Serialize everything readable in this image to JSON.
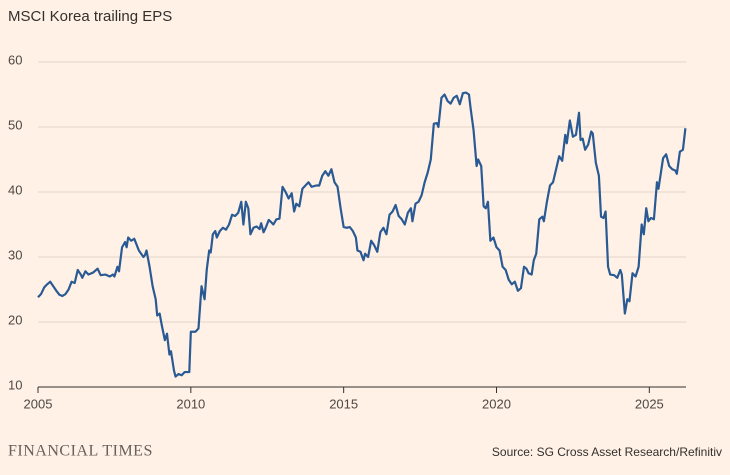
{
  "chart_data": {
    "type": "line",
    "title": "MSCI Korea trailing EPS",
    "source": "Source: SG Cross Asset Research/Refinitiv",
    "brand": "FINANCIAL TIMES",
    "xlim": [
      2005,
      2026.2
    ],
    "xticks": [
      2005,
      2010,
      2015,
      2020,
      2025
    ],
    "ylim": [
      10,
      60
    ],
    "yticks": [
      10,
      20,
      30,
      40,
      50,
      60
    ],
    "grid": true,
    "x": [
      2005.0,
      2005.1,
      2005.2,
      2005.3,
      2005.4,
      2005.5,
      2005.6,
      2005.7,
      2005.8,
      2005.9,
      2006.0,
      2006.1,
      2006.2,
      2006.3,
      2006.4,
      2006.45,
      2006.55,
      2006.65,
      2006.8,
      2006.95,
      2007.05,
      2007.2,
      2007.35,
      2007.45,
      2007.5,
      2007.6,
      2007.65,
      2007.75,
      2007.85,
      2007.9,
      2007.95,
      2008.05,
      2008.15,
      2008.3,
      2008.45,
      2008.5,
      2008.55,
      2008.65,
      2008.75,
      2008.85,
      2008.9,
      2008.98,
      2009.05,
      2009.15,
      2009.22,
      2009.3,
      2009.35,
      2009.45,
      2009.5,
      2009.6,
      2009.7,
      2009.8,
      2009.95,
      2010.0,
      2010.15,
      2010.25,
      2010.35,
      2010.45,
      2010.52,
      2010.6,
      2010.65,
      2010.72,
      2010.8,
      2010.85,
      2010.95,
      2011.05,
      2011.15,
      2011.25,
      2011.35,
      2011.45,
      2011.55,
      2011.65,
      2011.72,
      2011.8,
      2011.88,
      2011.95,
      2012.05,
      2012.15,
      2012.25,
      2012.3,
      2012.38,
      2012.45,
      2012.55,
      2012.62,
      2012.7,
      2012.8,
      2012.9,
      2013.0,
      2013.1,
      2013.2,
      2013.3,
      2013.38,
      2013.45,
      2013.55,
      2013.65,
      2013.75,
      2013.85,
      2013.95,
      2014.1,
      2014.2,
      2014.3,
      2014.4,
      2014.5,
      2014.6,
      2014.7,
      2014.8,
      2014.9,
      2015.0,
      2015.1,
      2015.2,
      2015.3,
      2015.4,
      2015.45,
      2015.55,
      2015.65,
      2015.7,
      2015.8,
      2015.9,
      2016.0,
      2016.1,
      2016.2,
      2016.3,
      2016.4,
      2016.5,
      2016.6,
      2016.7,
      2016.8,
      2016.9,
      2017.0,
      2017.1,
      2017.2,
      2017.25,
      2017.35,
      2017.45,
      2017.55,
      2017.65,
      2017.75,
      2017.85,
      2017.95,
      2018.05,
      2018.1,
      2018.2,
      2018.3,
      2018.4,
      2018.5,
      2018.6,
      2018.7,
      2018.8,
      2018.9,
      2019.0,
      2019.1,
      2019.15,
      2019.25,
      2019.35,
      2019.4,
      2019.5,
      2019.58,
      2019.65,
      2019.72,
      2019.8,
      2019.9,
      2020.0,
      2020.1,
      2020.2,
      2020.3,
      2020.4,
      2020.5,
      2020.6,
      2020.7,
      2020.8,
      2020.9,
      2020.98,
      2021.05,
      2021.15,
      2021.22,
      2021.3,
      2021.4,
      2021.5,
      2021.55,
      2021.65,
      2021.75,
      2021.85,
      2021.95,
      2022.05,
      2022.15,
      2022.25,
      2022.3,
      2022.4,
      2022.5,
      2022.6,
      2022.7,
      2022.75,
      2022.82,
      2022.9,
      2023.0,
      2023.1,
      2023.15,
      2023.25,
      2023.35,
      2023.42,
      2023.5,
      2023.57,
      2023.65,
      2023.72,
      2023.85,
      2023.95,
      2024.05,
      2024.1,
      2024.2,
      2024.28,
      2024.35,
      2024.45,
      2024.55,
      2024.65,
      2024.75,
      2024.82,
      2024.9,
      2024.97,
      2025.05,
      2025.15,
      2025.25,
      2025.3,
      2025.45,
      2025.55,
      2025.65,
      2025.75,
      2025.85,
      2025.9,
      2026.0,
      2026.1,
      2026.18
    ],
    "series": [
      {
        "color": "#2a5a94",
        "values": [
          23.8,
          24.3,
          25.3,
          25.8,
          26.2,
          25.5,
          24.8,
          24.2,
          24.0,
          24.3,
          25.0,
          26.2,
          26.0,
          28.0,
          27.3,
          26.8,
          27.8,
          27.3,
          27.6,
          28.2,
          27.2,
          27.3,
          27.0,
          27.3,
          27.0,
          28.5,
          27.8,
          31.5,
          32.3,
          31.5,
          33.0,
          32.5,
          32.8,
          31.0,
          30.0,
          30.3,
          31.0,
          28.5,
          25.5,
          23.5,
          21.0,
          21.3,
          19.5,
          17.2,
          18.2,
          15.0,
          15.5,
          12.5,
          11.6,
          12.0,
          11.8,
          12.3,
          12.3,
          18.5,
          18.5,
          19.0,
          25.5,
          23.5,
          28.0,
          31.0,
          30.7,
          33.5,
          34.0,
          33.0,
          34.0,
          34.5,
          34.2,
          35.0,
          36.5,
          36.3,
          36.8,
          38.5,
          35.0,
          38.5,
          37.5,
          33.5,
          34.5,
          34.7,
          34.3,
          35.2,
          33.8,
          34.5,
          35.7,
          35.4,
          35.0,
          35.8,
          35.9,
          40.8,
          40.0,
          39.0,
          39.8,
          37.0,
          38.2,
          37.8,
          40.5,
          41.0,
          41.5,
          40.8,
          41.0,
          41.0,
          42.5,
          43.2,
          42.5,
          43.5,
          41.5,
          40.8,
          37.5,
          34.6,
          34.5,
          34.6,
          34.0,
          33.0,
          31.0,
          30.8,
          29.5,
          30.5,
          30.0,
          32.5,
          31.8,
          30.8,
          33.8,
          34.5,
          33.5,
          36.5,
          37.0,
          38.0,
          36.3,
          35.8,
          35.0,
          36.8,
          37.5,
          35.5,
          38.2,
          38.5,
          39.5,
          41.5,
          43.0,
          45.0,
          50.5,
          50.6,
          50.0,
          54.5,
          55.0,
          54.0,
          53.6,
          54.5,
          54.8,
          53.5,
          55.2,
          55.3,
          55.0,
          53.0,
          49.5,
          44.0,
          45.0,
          44.0,
          37.8,
          37.5,
          38.5,
          32.5,
          33.0,
          31.5,
          31.0,
          28.5,
          28.0,
          26.5,
          25.8,
          26.2,
          24.8,
          25.2,
          28.5,
          28.2,
          27.5,
          27.3,
          29.5,
          30.5,
          35.8,
          36.2,
          35.5,
          38.5,
          41.0,
          41.5,
          43.5,
          45.5,
          44.8,
          48.8,
          47.5,
          51.0,
          48.5,
          48.8,
          52.2,
          48.0,
          48.2,
          46.5,
          47.3,
          49.3,
          49.0,
          44.5,
          42.5,
          36.2,
          36.0,
          37.0,
          28.5,
          27.3,
          27.2,
          26.8,
          28.0,
          27.3,
          21.3,
          23.5,
          23.2,
          27.5,
          27.0,
          28.5,
          35.0,
          33.5,
          37.5,
          35.5,
          36.0,
          35.8,
          41.5,
          40.5,
          45.2,
          45.8,
          44.0,
          43.5,
          43.3,
          42.8,
          46.2,
          46.5,
          49.8
        ]
      }
    ]
  }
}
